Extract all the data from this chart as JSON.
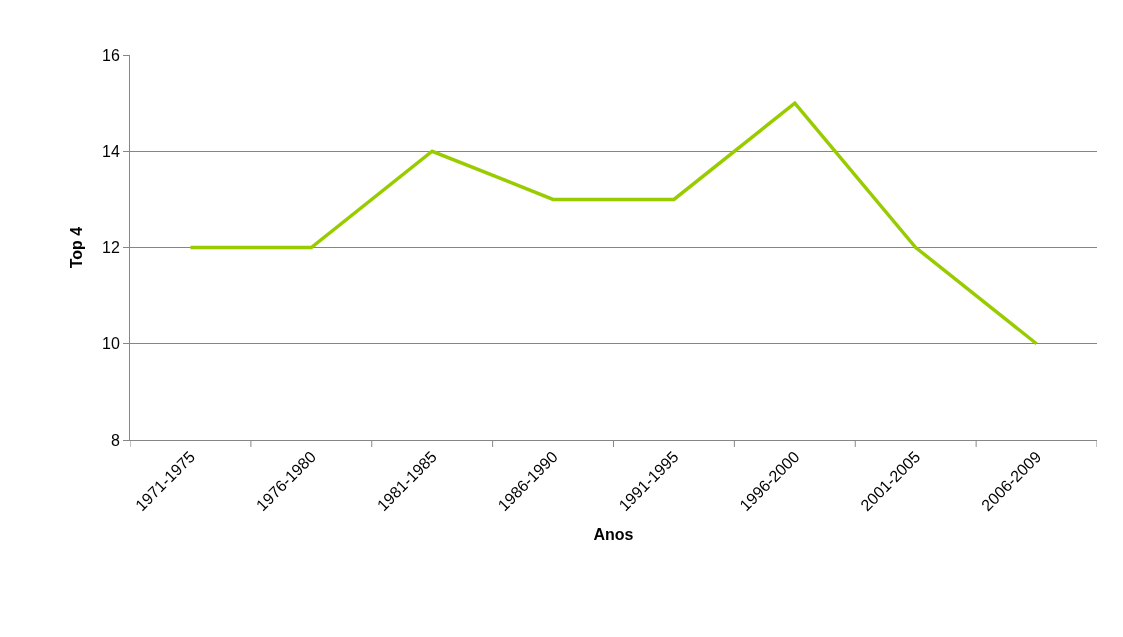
{
  "chart_data": {
    "type": "line",
    "xlabel": "Anos",
    "ylabel": "Top 4",
    "categories": [
      "1971-1975",
      "1976-1980",
      "1981-1985",
      "1986-1990",
      "1991-1995",
      "1996-2000",
      "2001-2005",
      "2006-2009"
    ],
    "series": [
      {
        "color": "#99cc00",
        "values": [
          12,
          12,
          14,
          13,
          13,
          15,
          12,
          10
        ]
      }
    ],
    "ylim": [
      8,
      16
    ],
    "yticks": [
      8,
      10,
      12,
      14,
      16
    ],
    "grid": "y",
    "marker": "none",
    "line_style": "solid"
  }
}
